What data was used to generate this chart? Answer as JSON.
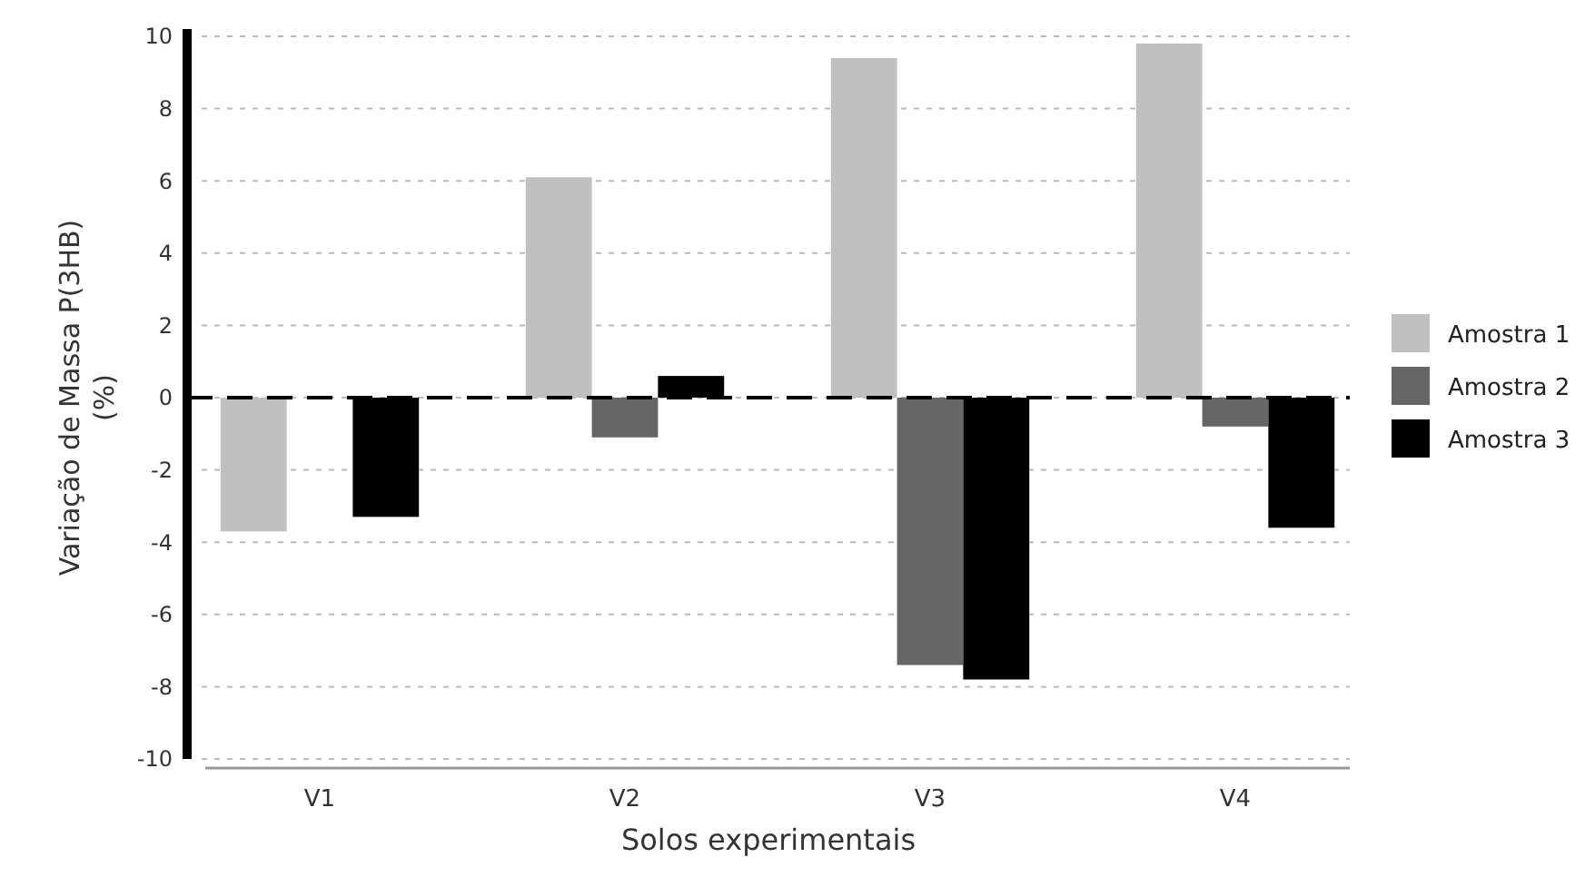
{
  "chart_data": {
    "type": "bar",
    "xlabel": "Solos experimentais",
    "ylabel": "Variação de Massa P(3HB) (%)",
    "categories": [
      "V1",
      "V2",
      "V3",
      "V4"
    ],
    "series": [
      {
        "name": "Amostra 1",
        "color": "#c0c0c0",
        "values": [
          -3.7,
          6.1,
          9.4,
          9.8
        ]
      },
      {
        "name": "Amostra 2",
        "color": "#666666",
        "values": [
          null,
          -1.1,
          -7.4,
          -0.8
        ]
      },
      {
        "name": "Amostra 3",
        "color": "#000000",
        "values": [
          -3.3,
          0.6,
          -7.8,
          -3.6
        ]
      }
    ],
    "ylim": [
      -10,
      10
    ],
    "yticks": [
      -10,
      -8,
      -6,
      -4,
      -2,
      0,
      2,
      4,
      6,
      8,
      10
    ],
    "grid": "y",
    "legend": "right",
    "ref_lines": [
      {
        "axis": "y",
        "value": 0,
        "line_style": "dashed",
        "color": "#000000"
      }
    ]
  }
}
